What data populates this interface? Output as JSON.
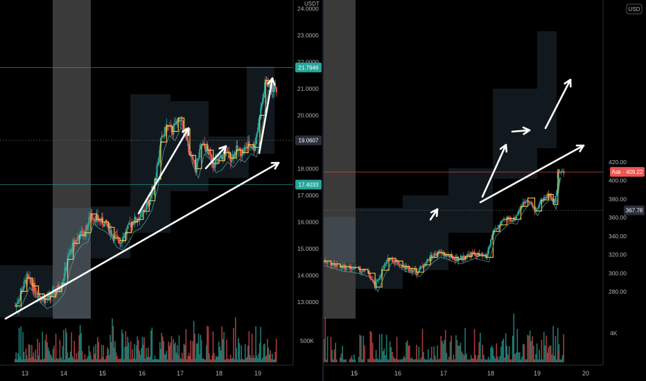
{
  "chart_data": [
    {
      "type": "candlestick",
      "pane": "left",
      "currency": "USDT",
      "x_ticks": [
        "13",
        "14",
        "15",
        "16",
        "17",
        "18",
        "19"
      ],
      "y_ticks": [
        "13.0000",
        "14.0000",
        "15.0000",
        "16.0000",
        "17.0000",
        "18.0000",
        "19.0000",
        "20.0000",
        "21.0000",
        "22.0000",
        "23.0000",
        "24.0000"
      ],
      "ylim": [
        12.7,
        24.0
      ],
      "price_labels": [
        {
          "text": "21.7946",
          "value": 21.7946,
          "color": "#26a69a"
        },
        {
          "text": "19.0607",
          "value": 19.0607,
          "color": "#2a2e39"
        },
        {
          "text": "17.4033",
          "value": 17.4033,
          "color": "#26a69a"
        }
      ],
      "close_path": [
        [
          12.75,
          12.85
        ],
        [
          12.9,
          13.4
        ],
        [
          13.05,
          13.9
        ],
        [
          13.2,
          13.6
        ],
        [
          13.35,
          13.3
        ],
        [
          13.5,
          13.1
        ],
        [
          13.65,
          13.2
        ],
        [
          13.8,
          13.4
        ],
        [
          13.95,
          13.7
        ],
        [
          14.1,
          14.6
        ],
        [
          14.25,
          15.2
        ],
        [
          14.4,
          15.5
        ],
        [
          14.55,
          15.6
        ],
        [
          14.7,
          16.3
        ],
        [
          14.85,
          16.1
        ],
        [
          15.0,
          16.0
        ],
        [
          15.15,
          15.8
        ],
        [
          15.3,
          15.4
        ],
        [
          15.45,
          15.3
        ],
        [
          15.6,
          15.6
        ],
        [
          15.75,
          16.0
        ],
        [
          15.9,
          16.1
        ],
        [
          16.05,
          16.4
        ],
        [
          16.2,
          16.8
        ],
        [
          16.35,
          17.6
        ],
        [
          16.5,
          19.0
        ],
        [
          16.65,
          19.6
        ],
        [
          16.8,
          19.4
        ],
        [
          16.95,
          19.9
        ],
        [
          17.1,
          19.5
        ],
        [
          17.25,
          18.5
        ],
        [
          17.4,
          18.0
        ],
        [
          17.55,
          18.9
        ],
        [
          17.7,
          18.7
        ],
        [
          17.85,
          18.2
        ],
        [
          18.0,
          18.3
        ],
        [
          18.15,
          18.6
        ],
        [
          18.3,
          18.4
        ],
        [
          18.45,
          18.7
        ],
        [
          18.6,
          18.6
        ],
        [
          18.75,
          18.9
        ],
        [
          18.9,
          18.8
        ],
        [
          19.05,
          20.0
        ],
        [
          19.2,
          21.3
        ],
        [
          19.35,
          21.0
        ]
      ],
      "volume_label": "500K"
    },
    {
      "type": "candlestick",
      "pane": "right",
      "currency": "USD",
      "x_ticks": [
        "15",
        "16",
        "17",
        "18",
        "19",
        "20"
      ],
      "y_ticks": [
        "280.00",
        "300.00",
        "320.00",
        "340.00",
        "360.00",
        "380.00",
        "400.00",
        "420.00"
      ],
      "ylim": [
        270,
        426
      ],
      "price_labels": [
        {
          "text": "Ask · 409.22",
          "value": 409.22,
          "color": "#ef5350"
        },
        {
          "text": "367.78",
          "value": 367.78,
          "color": "#2a2e39"
        }
      ],
      "close_path": [
        [
          14.1,
          316
        ],
        [
          14.3,
          313
        ],
        [
          14.5,
          310
        ],
        [
          14.7,
          307
        ],
        [
          14.9,
          306
        ],
        [
          15.1,
          304
        ],
        [
          15.3,
          300
        ],
        [
          15.45,
          285
        ],
        [
          15.6,
          303
        ],
        [
          15.75,
          316
        ],
        [
          15.9,
          313
        ],
        [
          16.05,
          307
        ],
        [
          16.2,
          305
        ],
        [
          16.35,
          301
        ],
        [
          16.5,
          309
        ],
        [
          16.65,
          317
        ],
        [
          16.8,
          322
        ],
        [
          16.95,
          320
        ],
        [
          17.1,
          317
        ],
        [
          17.25,
          315
        ],
        [
          17.4,
          318
        ],
        [
          17.55,
          321
        ],
        [
          17.7,
          319
        ],
        [
          17.85,
          317
        ],
        [
          18.0,
          345
        ],
        [
          18.15,
          352
        ],
        [
          18.3,
          359
        ],
        [
          18.45,
          358
        ],
        [
          18.6,
          372
        ],
        [
          18.75,
          381
        ],
        [
          18.9,
          367
        ],
        [
          19.05,
          379
        ],
        [
          19.2,
          385
        ],
        [
          19.3,
          374
        ],
        [
          19.4,
          409
        ]
      ],
      "volume_label": "4K"
    }
  ]
}
